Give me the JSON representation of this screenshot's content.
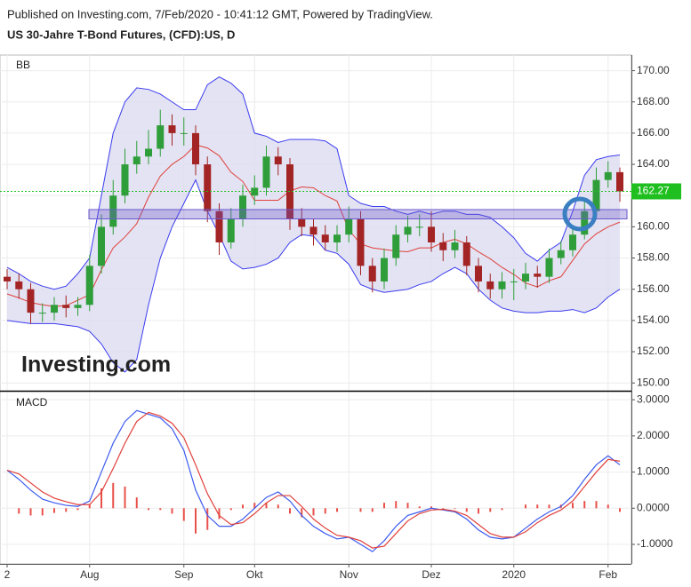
{
  "header": {
    "published": "Published on Investing.com, 7/Feb/2020 - 10:41:12 GMT, Powered by TradingView.",
    "title": "US 30-Jahre T-Bond Futures, (CFD):US, D"
  },
  "logo": "Investing.com",
  "chart_data": [
    {
      "type": "candlestick",
      "label": "BB",
      "grid": true,
      "up_color": "#2f9e3a",
      "down_color": "#a32424",
      "categories": [
        "2",
        null,
        null,
        null,
        null,
        null,
        null,
        "Aug",
        null,
        null,
        null,
        null,
        null,
        null,
        null,
        "Sep",
        null,
        null,
        null,
        null,
        null,
        "Okt",
        null,
        null,
        null,
        null,
        null,
        null,
        null,
        "Nov",
        null,
        null,
        null,
        null,
        null,
        null,
        "Dez",
        null,
        null,
        null,
        null,
        null,
        null,
        "2020",
        null,
        null,
        null,
        null,
        null,
        null,
        null,
        "Feb",
        null
      ],
      "open": [
        156.8,
        156.5,
        156,
        154.5,
        154.5,
        155,
        154.8,
        155,
        157.5,
        160,
        162,
        164,
        164.5,
        165,
        166.5,
        166,
        166,
        164,
        161,
        159,
        160.5,
        162,
        162.5,
        164.5,
        164,
        160.5,
        160,
        159.5,
        159,
        159.5,
        160.5,
        157.5,
        156.5,
        158,
        159.5,
        160,
        160,
        159,
        158.5,
        159,
        157.5,
        156.5,
        156,
        156.5,
        156.5,
        157,
        156.8,
        158,
        158.5,
        159.5,
        161,
        163,
        163.5
      ],
      "high": [
        157.3,
        157,
        156.4,
        155.1,
        155.5,
        155.6,
        155.5,
        158.2,
        160.8,
        163,
        165,
        165.5,
        166.2,
        167.5,
        167.2,
        167,
        166.5,
        164.5,
        161.5,
        161.2,
        162.7,
        163.3,
        165.2,
        165.1,
        164.4,
        161.2,
        160.5,
        160.1,
        160.1,
        161.3,
        161,
        158,
        158.6,
        160.1,
        160.7,
        160.8,
        161,
        159.6,
        159.8,
        159.4,
        158,
        157,
        157.1,
        157.3,
        157.7,
        157.5,
        158.6,
        159.1,
        160.1,
        161.6,
        163.8,
        164.2,
        163.8
      ],
      "low": [
        156,
        155.4,
        153.8,
        153.9,
        154,
        154.2,
        154.3,
        154.6,
        157,
        159.5,
        161.5,
        163.4,
        164,
        164.5,
        165.2,
        165.2,
        163.3,
        160.3,
        158.2,
        158.6,
        160,
        161.4,
        162,
        163.3,
        159.8,
        159.4,
        158.8,
        158.5,
        158.4,
        159,
        156.9,
        155.8,
        156,
        157.5,
        159,
        159.4,
        158.4,
        157.8,
        158,
        156.9,
        155.8,
        155.4,
        155.4,
        155.3,
        156,
        156.1,
        156.4,
        157.6,
        158.1,
        159.2,
        160.6,
        162.5,
        161.6
      ],
      "close": [
        156.5,
        156,
        154.5,
        154.5,
        155,
        154.8,
        155,
        157.5,
        160,
        162,
        164,
        164.5,
        165,
        166.5,
        166,
        166,
        164,
        161,
        159,
        160.5,
        162,
        162.5,
        164.5,
        164,
        160.5,
        160,
        159.5,
        159,
        159.5,
        160.5,
        157.5,
        156.5,
        158,
        159.5,
        160,
        160,
        159,
        158.5,
        159,
        157.5,
        156.5,
        156,
        156.5,
        156.5,
        157,
        156.8,
        158,
        158.5,
        159.5,
        161,
        163,
        163.5,
        162.27
      ],
      "bands": {
        "fill": "#dcdcf0",
        "series": [
          {
            "color": "#3b3bf0",
            "values": [
              157.4,
              157,
              156.5,
              156.2,
              156,
              156.2,
              157,
              158,
              162,
              166,
              168,
              168.9,
              168.8,
              168.5,
              168,
              167.5,
              167.5,
              169.1,
              169.6,
              169.2,
              168.5,
              166,
              165.8,
              165.4,
              165.6,
              165.6,
              165.6,
              165.5,
              165,
              162,
              161.5,
              161.3,
              161.3,
              161,
              160.8,
              161,
              160.8,
              161,
              161,
              160.8,
              160.8,
              160.6,
              160,
              159.3,
              158.3,
              157.8,
              158.5,
              159,
              161,
              163.3,
              164.3,
              164.5,
              164.6
            ]
          },
          {
            "color": "#e0403a",
            "values": [
              155.7,
              155.45,
              155.15,
              155,
              154.9,
              154.95,
              155.3,
              155.65,
              157.25,
              158.65,
              159.35,
              160.2,
              161.9,
              163.25,
              164,
              164.5,
              165.25,
              165.05,
              164.55,
              163.5,
              162.9,
              161.7,
              161.7,
              161.7,
              162.3,
              162.55,
              162.5,
              162,
              161.65,
              159.8,
              158.9,
              158.65,
              158.55,
              158.45,
              158.4,
              158.65,
              158.65,
              159,
              159.2,
              158.9,
              158.4,
              157.95,
              157.4,
              156.95,
              156.4,
              156.15,
              156.55,
              156.8,
              157.85,
              158.9,
              159.55,
              160,
              160.3
            ]
          },
          {
            "color": "#3b3bf0",
            "values": [
              154,
              153.9,
              153.8,
              153.8,
              153.8,
              153.7,
              153.6,
              153.3,
              152.5,
              151.3,
              150.7,
              151.5,
              155,
              158,
              160,
              161.5,
              163,
              161,
              159.5,
              157.8,
              157.3,
              157.4,
              157.6,
              158,
              159,
              159.5,
              159.4,
              158.5,
              158.3,
              157.6,
              156.3,
              156,
              155.8,
              155.9,
              156,
              156.3,
              156.5,
              157,
              157.4,
              157,
              156,
              155.3,
              154.8,
              154.6,
              154.5,
              154.5,
              154.6,
              154.6,
              154.7,
              154.5,
              154.8,
              155.5,
              156
            ]
          }
        ]
      },
      "last_price": 162.27,
      "last_price_color": "#1fbf1f",
      "ylim": [
        149.5,
        171
      ],
      "yticks": [
        {
          "value": 150,
          "label": "150.00"
        },
        {
          "value": 152,
          "label": "152.00"
        },
        {
          "value": 154,
          "label": "154.00"
        },
        {
          "value": 156,
          "label": "156.00"
        },
        {
          "value": 158,
          "label": "158.00"
        },
        {
          "value": 160,
          "label": "160.00"
        },
        {
          "value": 162,
          "label": "162.00"
        },
        {
          "value": 164,
          "label": "164.00"
        },
        {
          "value": 166,
          "label": "166.00"
        },
        {
          "value": 168,
          "label": "168.00"
        },
        {
          "value": 170,
          "label": "170.00"
        }
      ]
    },
    {
      "type": "line",
      "label": "MACD",
      "grid": true,
      "series": [
        {
          "color": "#3b5bef",
          "values": [
            1.05,
            0.8,
            0.5,
            0.25,
            0.15,
            0.08,
            0.05,
            0.2,
            1.0,
            1.8,
            2.4,
            2.7,
            2.6,
            2.5,
            2.2,
            1.6,
            0.5,
            -0.2,
            -0.5,
            -0.5,
            -0.3,
            0,
            0.3,
            0.45,
            0.2,
            -0.2,
            -0.5,
            -0.7,
            -0.85,
            -0.8,
            -1.0,
            -1.2,
            -0.9,
            -0.5,
            -0.2,
            -0.1,
            0,
            -0.05,
            -0.1,
            -0.3,
            -0.6,
            -0.8,
            -0.85,
            -0.8,
            -0.55,
            -0.3,
            -0.1,
            0.05,
            0.35,
            0.8,
            1.2,
            1.45,
            1.2
          ]
        },
        {
          "color": "#e0403a",
          "values": [
            1.05,
            0.95,
            0.7,
            0.45,
            0.28,
            0.18,
            0.1,
            0.1,
            0.45,
            1.1,
            1.8,
            2.4,
            2.65,
            2.55,
            2.35,
            1.95,
            1.2,
            0.4,
            -0.2,
            -0.45,
            -0.4,
            -0.15,
            0.15,
            0.35,
            0.35,
            0.05,
            -0.3,
            -0.55,
            -0.75,
            -0.8,
            -0.9,
            -1.1,
            -1.05,
            -0.7,
            -0.35,
            -0.15,
            -0.05,
            -0.03,
            -0.08,
            -0.2,
            -0.45,
            -0.7,
            -0.8,
            -0.8,
            -0.65,
            -0.4,
            -0.2,
            -0.05,
            0.2,
            0.6,
            1.0,
            1.35,
            1.3
          ]
        }
      ],
      "histogram": {
        "color": "#e8504a",
        "values": [
          0,
          -0.15,
          -0.2,
          -0.2,
          -0.13,
          -0.1,
          -0.05,
          0.1,
          0.55,
          0.7,
          0.6,
          0.3,
          -0.05,
          -0.05,
          -0.15,
          -0.35,
          -0.7,
          -0.6,
          -0.3,
          -0.05,
          0.1,
          0.15,
          0.15,
          0.1,
          -0.15,
          -0.25,
          -0.2,
          -0.15,
          -0.1,
          0,
          -0.1,
          -0.1,
          0.15,
          0.2,
          0.15,
          0.05,
          0.05,
          -0.02,
          -0.02,
          -0.1,
          -0.15,
          -0.1,
          -0.05,
          0,
          0.1,
          0.1,
          0.1,
          0.1,
          0.15,
          0.2,
          0.2,
          0.1,
          -0.1
        ]
      },
      "ylim": [
        -1.54,
        3.2
      ],
      "yticks": [
        {
          "value": 3,
          "label": "3.0000"
        },
        {
          "value": 2,
          "label": "2.0000"
        },
        {
          "value": 1,
          "label": "1.0000"
        },
        {
          "value": 0,
          "label": "0.0000"
        },
        {
          "value": -1,
          "label": "-1.0000"
        }
      ]
    }
  ]
}
